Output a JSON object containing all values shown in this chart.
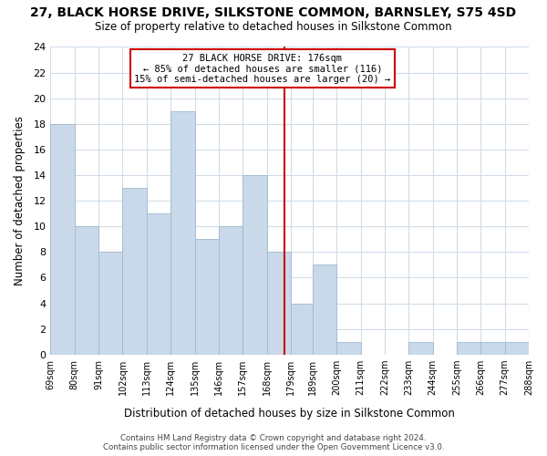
{
  "title": "27, BLACK HORSE DRIVE, SILKSTONE COMMON, BARNSLEY, S75 4SD",
  "subtitle": "Size of property relative to detached houses in Silkstone Common",
  "xlabel": "Distribution of detached houses by size in Silkstone Common",
  "ylabel": "Number of detached properties",
  "bar_edges": [
    69,
    80,
    91,
    102,
    113,
    124,
    135,
    146,
    157,
    168,
    179,
    189,
    200,
    211,
    222,
    233,
    244,
    255,
    266,
    277,
    288
  ],
  "bar_heights": [
    18,
    10,
    8,
    13,
    11,
    19,
    9,
    10,
    14,
    8,
    4,
    7,
    1,
    0,
    0,
    1,
    0,
    1,
    1,
    1
  ],
  "bar_color": "#c9d9ea",
  "bar_edge_color": "#a0b8d0",
  "grid_color": "#d0dce8",
  "bg_color": "#ffffff",
  "property_size": 176,
  "annotation_title": "27 BLACK HORSE DRIVE: 176sqm",
  "annotation_line1": "← 85% of detached houses are smaller (116)",
  "annotation_line2": "15% of semi-detached houses are larger (20) →",
  "annotation_box_color": "#ffffff",
  "annotation_border_color": "#cc0000",
  "vline_color": "#cc0000",
  "ylim": [
    0,
    24
  ],
  "yticks": [
    0,
    2,
    4,
    6,
    8,
    10,
    12,
    14,
    16,
    18,
    20,
    22,
    24
  ],
  "footer_line1": "Contains HM Land Registry data © Crown copyright and database right 2024.",
  "footer_line2": "Contains public sector information licensed under the Open Government Licence v3.0.",
  "tick_labels": [
    "69sqm",
    "80sqm",
    "91sqm",
    "102sqm",
    "113sqm",
    "124sqm",
    "135sqm",
    "146sqm",
    "157sqm",
    "168sqm",
    "179sqm",
    "189sqm",
    "200sqm",
    "211sqm",
    "222sqm",
    "233sqm",
    "244sqm",
    "255sqm",
    "266sqm",
    "277sqm",
    "288sqm"
  ]
}
